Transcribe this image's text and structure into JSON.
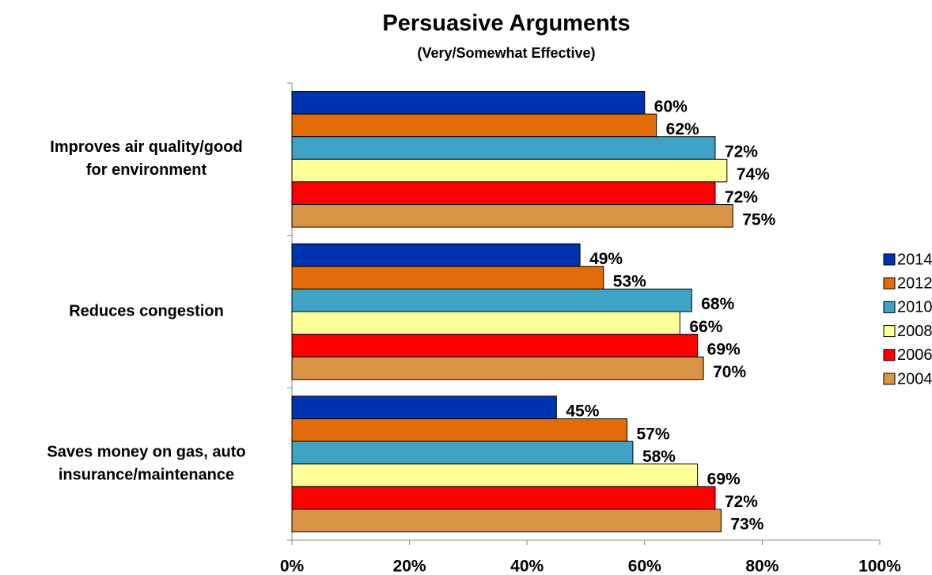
{
  "chart_data": {
    "type": "bar",
    "orientation": "horizontal",
    "title": "Persuasive Arguments",
    "subtitle": "(Very/Somewhat Effective)",
    "categories": [
      [
        "Improves air quality/good",
        "for environment"
      ],
      [
        "Reduces congestion"
      ],
      [
        "Saves money on gas, auto",
        "insurance/maintenance"
      ]
    ],
    "series": [
      {
        "name": "2014",
        "color": "#0033b0",
        "values": [
          60,
          49,
          45
        ],
        "value_labels": [
          "60%",
          "49%",
          "45%"
        ]
      },
      {
        "name": "2012",
        "color": "#e36c0a",
        "values": [
          62,
          53,
          57
        ],
        "value_labels": [
          "62%",
          "53%",
          "57%"
        ]
      },
      {
        "name": "2010",
        "color": "#3fa4c4",
        "values": [
          72,
          68,
          58
        ],
        "value_labels": [
          "72%",
          "68%",
          "58%"
        ]
      },
      {
        "name": "2008",
        "color": "#ffff99",
        "values": [
          74,
          66,
          69
        ],
        "value_labels": [
          "74%",
          "66%",
          "69%"
        ]
      },
      {
        "name": "2006",
        "color": "#ff0000",
        "values": [
          72,
          69,
          72
        ],
        "value_labels": [
          "72%",
          "69%",
          "72%"
        ]
      },
      {
        "name": "2004",
        "color": "#d99446",
        "values": [
          75,
          70,
          73
        ],
        "value_labels": [
          "75%",
          "70%",
          "73%"
        ]
      }
    ],
    "xlim": [
      0,
      100
    ],
    "xticks": [
      {
        "value": 0,
        "label": "0%"
      },
      {
        "value": 20,
        "label": "20%"
      },
      {
        "value": 40,
        "label": "40%"
      },
      {
        "value": 60,
        "label": "60%"
      },
      {
        "value": 80,
        "label": "80%"
      },
      {
        "value": 100,
        "label": "100%"
      }
    ],
    "legend": "right"
  }
}
